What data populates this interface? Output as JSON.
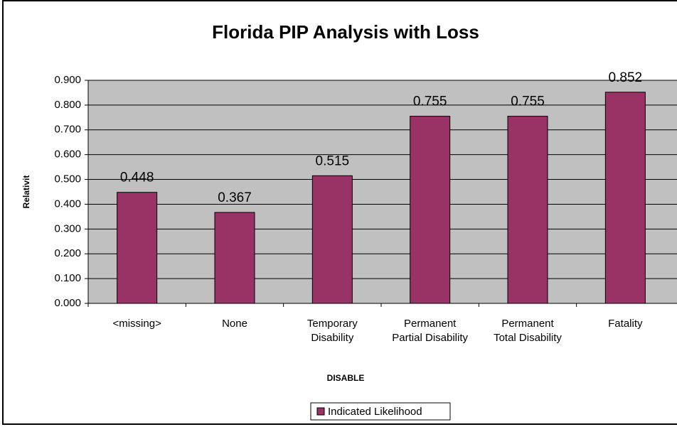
{
  "chart_data": {
    "type": "bar",
    "title": "Florida PIP Analysis with Loss",
    "x_label": "DISABLE",
    "y_label": "Relativit",
    "categories": [
      "<missing>",
      "None",
      "Temporary Disability",
      "Permanent Partial Disability",
      "Permanent Total Disability",
      "Fatality"
    ],
    "series": [
      {
        "name": "Indicated Likelihood",
        "color": "#993366",
        "values": [
          0.448,
          0.367,
          0.515,
          0.755,
          0.755,
          0.852
        ]
      }
    ],
    "ylim": [
      0,
      0.9
    ],
    "yticks": [
      {
        "value": 0,
        "label": "0.000"
      },
      {
        "value": 0.1,
        "label": "0.100"
      },
      {
        "value": 0.2,
        "label": "0.200"
      },
      {
        "value": 0.3,
        "label": "0.300"
      },
      {
        "value": 0.4,
        "label": "0.400"
      },
      {
        "value": 0.5,
        "label": "0.500"
      },
      {
        "value": 0.6,
        "label": "0.600"
      },
      {
        "value": 0.7,
        "label": "0.700"
      },
      {
        "value": 0.8,
        "label": "0.800"
      },
      {
        "value": 0.9,
        "label": "0.900"
      }
    ],
    "grid": true,
    "legend": "bottom"
  }
}
